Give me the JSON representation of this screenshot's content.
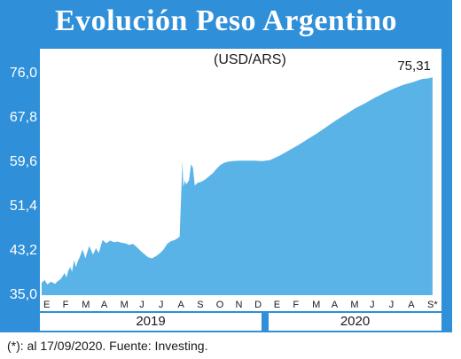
{
  "header": {
    "title": "Evolución Peso Argentino"
  },
  "footnote": "(*): al 17/09/2020. Fuente: Investing.",
  "colors": {
    "frame": "#2f8fd8",
    "area": "#5ab3e6",
    "background": "#ffffff"
  },
  "chart_data": {
    "type": "area",
    "title": "Evolución Peso Argentino",
    "subtitle": "(USD/ARS)",
    "ylim": [
      35.0,
      76.0
    ],
    "yticks": [
      "76,0",
      "67,8",
      "59,6",
      "51,4",
      "43,2",
      "35,0"
    ],
    "ytick_values": [
      76.0,
      67.8,
      59.6,
      51.4,
      43.2,
      35.0
    ],
    "months": [
      "E",
      "F",
      "M",
      "A",
      "M",
      "J",
      "J",
      "A",
      "S",
      "O",
      "N",
      "D",
      "E",
      "F",
      "M",
      "A",
      "M",
      "J",
      "J",
      "A",
      "S*"
    ],
    "years": [
      "2019",
      "2020"
    ],
    "last_value_label": "75,31",
    "grid": false,
    "series": [
      {
        "x": [
          0.0,
          0.15,
          0.3,
          0.5,
          0.7,
          0.85,
          1.0,
          1.1,
          1.2,
          1.3,
          1.4,
          1.5,
          1.6,
          1.7,
          1.8,
          1.9,
          2.0,
          2.15,
          2.3,
          2.5,
          2.7,
          2.85,
          3.0,
          3.2,
          3.4,
          3.6,
          3.8,
          4.0,
          4.2,
          4.4,
          4.6,
          4.8,
          5.0,
          5.2,
          5.4,
          5.6,
          5.8,
          6.0,
          6.2,
          6.4,
          6.6,
          6.8,
          7.0,
          7.25,
          7.4,
          7.45,
          7.52,
          7.6,
          7.75,
          7.85,
          7.95,
          8.05,
          8.2,
          8.4,
          8.6,
          8.8,
          9.0,
          9.2,
          9.4,
          9.6,
          9.8,
          10.0,
          10.4,
          10.8,
          11.2,
          11.6,
          12.0,
          12.5,
          13.0,
          13.5,
          14.0,
          14.5,
          15.0,
          15.5,
          16.0,
          16.5,
          17.0,
          17.5,
          18.0,
          18.5,
          19.0,
          19.5,
          20.0,
          20.3,
          20.55
        ],
        "y": [
          37.3,
          37.8,
          37.0,
          37.5,
          37.1,
          37.6,
          38.0,
          38.5,
          39.1,
          38.3,
          39.5,
          40.2,
          39.3,
          41.5,
          40.2,
          41.3,
          42.0,
          43.5,
          41.8,
          44.1,
          42.5,
          43.7,
          42.8,
          45.2,
          44.6,
          45.1,
          44.8,
          44.9,
          44.7,
          44.6,
          44.3,
          44.5,
          43.9,
          43.2,
          42.6,
          42.0,
          41.8,
          42.2,
          42.7,
          43.4,
          44.5,
          45.0,
          45.2,
          45.8,
          59.8,
          55.0,
          56.2,
          55.5,
          56.3,
          59.2,
          58.6,
          55.3,
          55.8,
          56.0,
          56.4,
          57.0,
          57.6,
          58.4,
          59.1,
          59.5,
          59.7,
          59.8,
          59.9,
          59.9,
          59.9,
          59.8,
          60.0,
          60.8,
          61.8,
          62.8,
          63.9,
          65.0,
          66.2,
          67.4,
          68.5,
          69.6,
          70.5,
          71.5,
          72.4,
          73.2,
          73.9,
          74.4,
          75.0,
          75.1,
          75.31
        ]
      }
    ]
  }
}
